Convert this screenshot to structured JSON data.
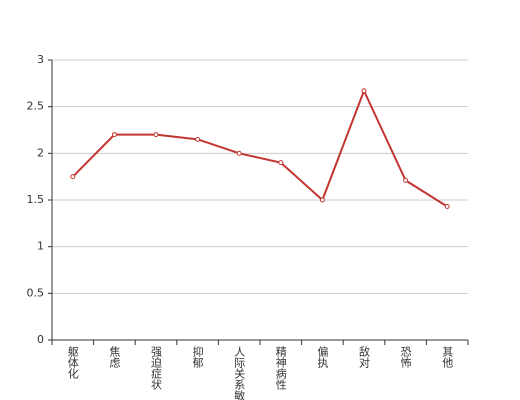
{
  "chart_data": {
    "type": "line",
    "categories": [
      "躯体化",
      "焦虑",
      "强迫症状",
      "抑郁",
      "人际关系敏感",
      "精神病性",
      "偏执",
      "敌对",
      "恐怖",
      "其他"
    ],
    "values": [
      1.75,
      2.2,
      2.2,
      2.15,
      2.0,
      1.9,
      1.5,
      2.67,
      1.71,
      1.43
    ],
    "color": "#c23531",
    "ylim": [
      0,
      3
    ],
    "yticks": [
      0,
      0.5,
      1,
      1.5,
      2,
      2.5,
      3
    ],
    "grid": true
  }
}
